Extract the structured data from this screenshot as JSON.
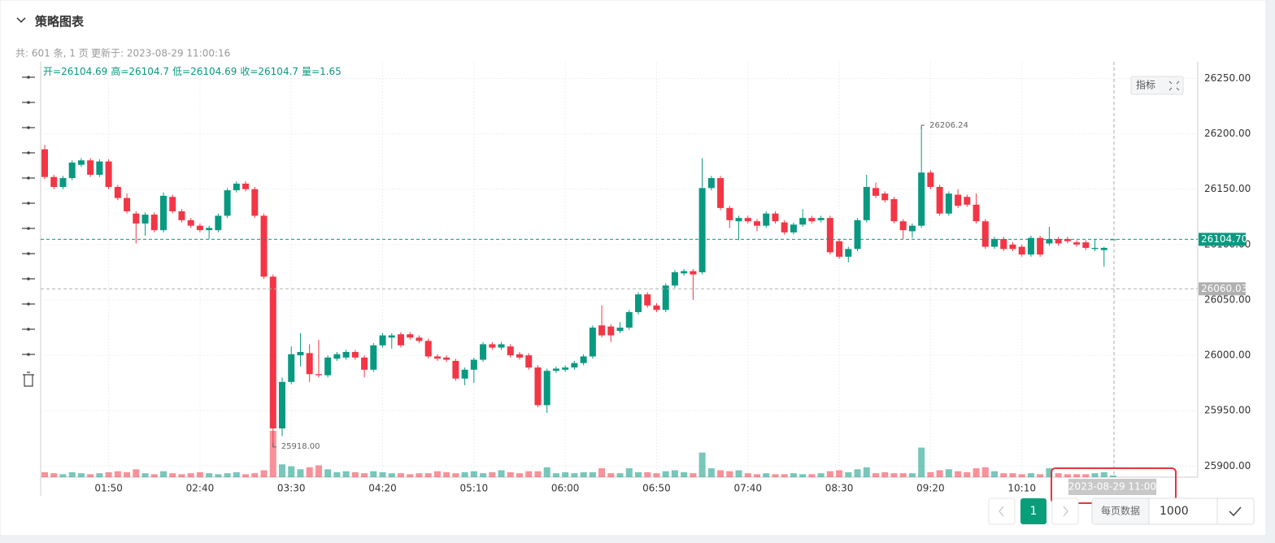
{
  "ui": {
    "title": "策略图表",
    "count_info": "共: 601 条, 1 页",
    "updated": "更新于: 2023-08-29 11:00:16",
    "indicator_button": "指标",
    "page_current": "1",
    "per_page_label": "每页数据",
    "per_page_value": "1000"
  },
  "chart_data": {
    "type": "candlestick",
    "x": [
      "01:15",
      "01:20",
      "01:25",
      "01:30",
      "01:35",
      "01:40",
      "01:45",
      "01:50",
      "01:55",
      "02:00",
      "02:05",
      "02:10",
      "02:15",
      "02:20",
      "02:25",
      "02:30",
      "02:35",
      "02:40",
      "02:45",
      "02:50",
      "02:55",
      "03:00",
      "03:05",
      "03:10",
      "03:15",
      "03:20",
      "03:25",
      "03:30",
      "03:35",
      "03:40",
      "03:45",
      "03:50",
      "03:55",
      "04:00",
      "04:05",
      "04:10",
      "04:15",
      "04:20",
      "04:25",
      "04:30",
      "04:35",
      "04:40",
      "04:45",
      "04:50",
      "04:55",
      "05:00",
      "05:05",
      "05:10",
      "05:15",
      "05:20",
      "05:25",
      "05:30",
      "05:35",
      "05:40",
      "05:45",
      "05:50",
      "05:55",
      "06:00",
      "06:05",
      "06:10",
      "06:15",
      "06:20",
      "06:25",
      "06:30",
      "06:35",
      "06:40",
      "06:45",
      "06:50",
      "06:55",
      "07:00",
      "07:05",
      "07:10",
      "07:15",
      "07:20",
      "07:25",
      "07:30",
      "07:35",
      "07:40",
      "07:45",
      "07:50",
      "07:55",
      "08:00",
      "08:05",
      "08:10",
      "08:15",
      "08:20",
      "08:25",
      "08:30",
      "08:35",
      "08:40",
      "08:45",
      "08:50",
      "08:55",
      "09:00",
      "09:05",
      "09:10",
      "09:15",
      "09:20",
      "09:25",
      "09:30",
      "09:35",
      "09:40",
      "09:45",
      "09:50",
      "09:55",
      "10:00",
      "10:05",
      "10:10",
      "10:15",
      "10:20",
      "10:25",
      "10:30",
      "10:35",
      "10:40",
      "10:45",
      "10:50",
      "10:55",
      "11:00"
    ],
    "ohlc": [
      [
        26186,
        26190,
        26159,
        26161
      ],
      [
        26161,
        26163,
        26150,
        26152
      ],
      [
        26152,
        26162,
        26150,
        26160
      ],
      [
        26160,
        26176,
        26158,
        26174
      ],
      [
        26172,
        26178,
        26170,
        26176
      ],
      [
        26176,
        26178,
        26161,
        26163
      ],
      [
        26163,
        26177,
        26161,
        26175
      ],
      [
        26175,
        26177,
        26150,
        26152
      ],
      [
        26152,
        26154,
        26140,
        26142
      ],
      [
        26142,
        26146,
        26128,
        26130
      ],
      [
        26128,
        26130,
        26101,
        26119
      ],
      [
        26119,
        26129,
        26108,
        26127
      ],
      [
        26127,
        26129,
        26111,
        26113
      ],
      [
        26113,
        26147,
        26111,
        26144
      ],
      [
        26143,
        26145,
        26128,
        26130
      ],
      [
        26130,
        26132,
        26120,
        26122
      ],
      [
        26122,
        26124,
        26115,
        26117
      ],
      [
        26117,
        26119,
        26111,
        26113
      ],
      [
        26113,
        26117,
        26105,
        26115
      ],
      [
        26113,
        26128,
        26111,
        26126
      ],
      [
        26126,
        26151,
        26124,
        26149
      ],
      [
        26149,
        26157,
        26147,
        26155
      ],
      [
        26155,
        26157,
        26148,
        26150
      ],
      [
        26150,
        26152,
        26124,
        26126
      ],
      [
        26126,
        26128,
        26069,
        26071
      ],
      [
        26071,
        26073,
        25918,
        25934
      ],
      [
        25934,
        25980,
        25927,
        25976
      ],
      [
        25976,
        26008,
        25974,
        26001
      ],
      [
        26000,
        26020,
        25990,
        26003
      ],
      [
        26002,
        26010,
        25976,
        25983
      ],
      [
        25983,
        26014,
        25980,
        25982
      ],
      [
        25982,
        26000,
        25980,
        25998
      ],
      [
        25997,
        26003,
        25995,
        26001
      ],
      [
        25998,
        26005,
        25996,
        26003
      ],
      [
        26003,
        26005,
        25996,
        25998
      ],
      [
        25998,
        26000,
        25980,
        25987
      ],
      [
        25987,
        26011,
        25985,
        26009
      ],
      [
        26009,
        26020,
        26007,
        26018
      ],
      [
        26016,
        26020,
        26006,
        26018
      ],
      [
        26019,
        26021,
        26007,
        26009
      ],
      [
        26019,
        26021,
        26014,
        26016
      ],
      [
        26016,
        26018,
        26011,
        26013
      ],
      [
        26013,
        26015,
        25997,
        25999
      ],
      [
        25999,
        26001,
        25995,
        25997
      ],
      [
        25998,
        26000,
        25994,
        25996
      ],
      [
        25995,
        25997,
        25977,
        25979
      ],
      [
        25979,
        25989,
        25973,
        25987
      ],
      [
        25987,
        25998,
        25975,
        25996
      ],
      [
        25996,
        26012,
        25994,
        26010
      ],
      [
        26010,
        26012,
        26005,
        26007
      ],
      [
        26007,
        26012,
        26005,
        26010
      ],
      [
        26008,
        26010,
        25998,
        26000
      ],
      [
        26001,
        26003,
        25996,
        25998
      ],
      [
        26000,
        26002,
        25987,
        25989
      ],
      [
        25989,
        25991,
        25953,
        25955
      ],
      [
        25955,
        25988,
        25948,
        25986
      ],
      [
        25986,
        25990,
        25984,
        25988
      ],
      [
        25987,
        25991,
        25985,
        25989
      ],
      [
        25989,
        25995,
        25987,
        25993
      ],
      [
        25993,
        26001,
        25991,
        25999
      ],
      [
        25999,
        26027,
        25997,
        26025
      ],
      [
        26027,
        26045,
        26016,
        26018
      ],
      [
        26026,
        26028,
        26012,
        26018
      ],
      [
        26022,
        26030,
        26020,
        26025
      ],
      [
        26025,
        26041,
        26023,
        26039
      ],
      [
        26039,
        26057,
        26037,
        26055
      ],
      [
        26055,
        26057,
        26043,
        26045
      ],
      [
        26045,
        26047,
        26039,
        26041
      ],
      [
        26041,
        26065,
        26039,
        26063
      ],
      [
        26063,
        26077,
        26061,
        26075
      ],
      [
        26074,
        26078,
        26072,
        26076
      ],
      [
        26076,
        26078,
        26050,
        26073
      ],
      [
        26075,
        26178,
        26073,
        26151
      ],
      [
        26151,
        26162,
        26149,
        26160
      ],
      [
        26160,
        26162,
        26131,
        26133
      ],
      [
        26133,
        26135,
        26115,
        26122
      ],
      [
        26121,
        26126,
        26104,
        26124
      ],
      [
        26124,
        26126,
        26119,
        26121
      ],
      [
        26121,
        26123,
        26112,
        26117
      ],
      [
        26117,
        26130,
        26115,
        26128
      ],
      [
        26128,
        26130,
        26119,
        26121
      ],
      [
        26120,
        26122,
        26109,
        26111
      ],
      [
        26111,
        26120,
        26109,
        26118
      ],
      [
        26118,
        26132,
        26116,
        26124
      ],
      [
        26124,
        26126,
        26119,
        26121
      ],
      [
        26122,
        26126,
        26120,
        26124
      ],
      [
        26124,
        26126,
        26091,
        26093
      ],
      [
        26103,
        26105,
        26087,
        26089
      ],
      [
        26089,
        26098,
        26084,
        26096
      ],
      [
        26096,
        26124,
        26094,
        26122
      ],
      [
        26122,
        26163,
        26120,
        26152
      ],
      [
        26151,
        26156,
        26142,
        26144
      ],
      [
        26146,
        26148,
        26138,
        26140
      ],
      [
        26141,
        26143,
        26119,
        26121
      ],
      [
        26121,
        26123,
        26105,
        26113
      ],
      [
        26112,
        26119,
        26106,
        26117
      ],
      [
        26117,
        26206.24,
        26115,
        26165
      ],
      [
        26165,
        26167,
        26150,
        26152
      ],
      [
        26152,
        26154,
        26126,
        26128
      ],
      [
        26128,
        26148,
        26126,
        26146
      ],
      [
        26145,
        26150,
        26133,
        26135
      ],
      [
        26143,
        26145,
        26134,
        26136
      ],
      [
        26136,
        26146,
        26119,
        26121
      ],
      [
        26121,
        26123,
        26096,
        26098
      ],
      [
        26098,
        26107,
        26096,
        26105
      ],
      [
        26105,
        26107,
        26094,
        26096
      ],
      [
        26100,
        26102,
        26094,
        26096
      ],
      [
        26098,
        26100,
        26089,
        26091
      ],
      [
        26091,
        26108,
        26089,
        26106
      ],
      [
        26106,
        26108,
        26089,
        26091
      ],
      [
        26101,
        26116,
        26099,
        26105
      ],
      [
        26105,
        26107,
        26099,
        26101
      ],
      [
        26105,
        26107,
        26101,
        26103
      ],
      [
        26102,
        26104,
        26098,
        26100
      ],
      [
        26102,
        26104,
        26095,
        26097
      ],
      [
        26096,
        26105,
        26094,
        26097
      ],
      [
        26095,
        26098,
        26080,
        26097
      ],
      [
        26104.69,
        26104.7,
        26104.69,
        26104.7
      ]
    ],
    "volumes": [
      5,
      4,
      3,
      5,
      4,
      3,
      4,
      5,
      6,
      5,
      8,
      4,
      3,
      6,
      4,
      3,
      4,
      5,
      4,
      3,
      4,
      5,
      3,
      4,
      7,
      47,
      13,
      11,
      8,
      10,
      12,
      8,
      5,
      6,
      5,
      4,
      6,
      5,
      4,
      4,
      3,
      4,
      4,
      6,
      5,
      4,
      5,
      6,
      4,
      5,
      7,
      5,
      4,
      6,
      6,
      10,
      4,
      5,
      4,
      5,
      5,
      9,
      4,
      4,
      9,
      5,
      5,
      4,
      6,
      7,
      5,
      4,
      25,
      9,
      7,
      6,
      7,
      4,
      3,
      4,
      3,
      3,
      4,
      3,
      3,
      4,
      6,
      7,
      5,
      8,
      10,
      4,
      5,
      4,
      4,
      4,
      30,
      5,
      7,
      8,
      6,
      5,
      9,
      10,
      6,
      4,
      4,
      3,
      4,
      3,
      9,
      4,
      3,
      3,
      3,
      4,
      5,
      1.65
    ],
    "up_color": "#089981",
    "down_color": "#f23645",
    "ylim": [
      25890,
      26265
    ],
    "yticks": [
      {
        "value": 26250,
        "label": "26250.00"
      },
      {
        "value": 26200,
        "label": "26200.00"
      },
      {
        "value": 26150,
        "label": "26150.00"
      },
      {
        "value": 26100,
        "label": "26100.00"
      },
      {
        "value": 26050,
        "label": "26050.00"
      },
      {
        "value": 26000,
        "label": "26000.00"
      },
      {
        "value": 25950,
        "label": "25950.00"
      },
      {
        "value": 25900,
        "label": "25900.00"
      }
    ],
    "xticks": [
      "01:50",
      "02:40",
      "03:30",
      "04:20",
      "05:10",
      "06:00",
      "06:50",
      "07:40",
      "08:30",
      "09:20",
      "10:10"
    ],
    "grid": true,
    "price_lines": [
      {
        "value": 26104.7,
        "label": "26104.70",
        "color": "#089981"
      },
      {
        "value": 26060.03,
        "label": "26060.03",
        "color": "#b0b0b0"
      }
    ],
    "low_label": "25918.00",
    "info_labels": [
      "开=",
      "高=",
      "低=",
      "收=",
      "量="
    ],
    "crosshair_label": "2023-08-29 11:00"
  }
}
